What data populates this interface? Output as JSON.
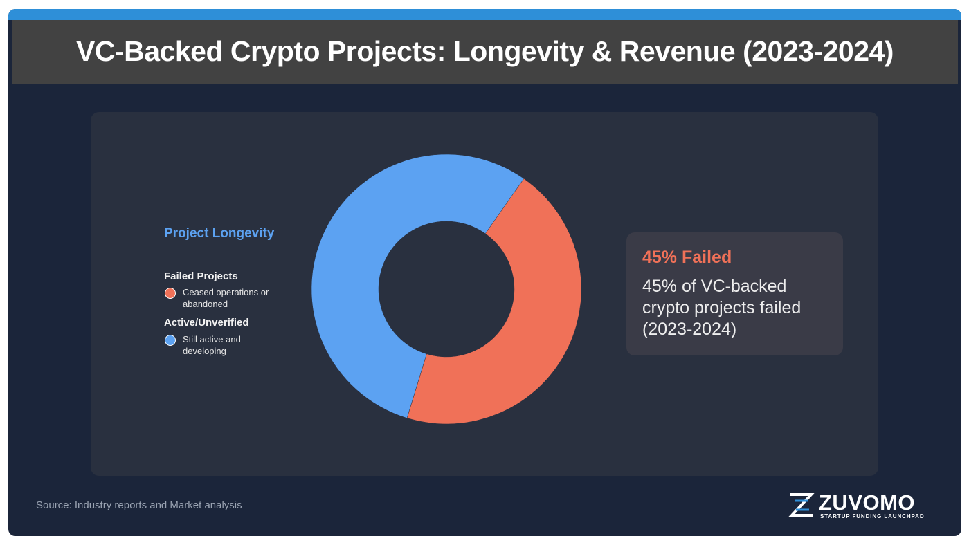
{
  "header": {
    "title": "VC-Backed Crypto Projects: Longevity & Revenue (2023-2024)"
  },
  "legend": {
    "heading": "Project Longevity",
    "failed": {
      "title": "Failed Projects",
      "desc": "Ceased operations or abandoned"
    },
    "active": {
      "title": "Active/Unverified",
      "desc": "Still active and developing"
    }
  },
  "callout": {
    "headline": "45% Failed",
    "text": "45% of VC-backed crypto projects failed (2023-2024)"
  },
  "footer": {
    "source": "Source: Industry reports and Market analysis"
  },
  "brand": {
    "name": "ZUVOMO",
    "tagline": "STARTUP FUNDING LAUNCHPAD",
    "logo_icon": "z-logo-icon"
  },
  "colors": {
    "failed": "#f07158",
    "active": "#5ca2f2",
    "accent_bar": "#2e8fd8",
    "background": "#1b253a"
  },
  "chart_data": {
    "type": "pie",
    "title": "Project Longevity",
    "categories": [
      "Failed Projects",
      "Active/Unverified"
    ],
    "values": [
      45,
      55
    ],
    "unit": "%",
    "donut": true,
    "start_angle_deg": 35,
    "colors": [
      "#f07158",
      "#5ca2f2"
    ]
  }
}
